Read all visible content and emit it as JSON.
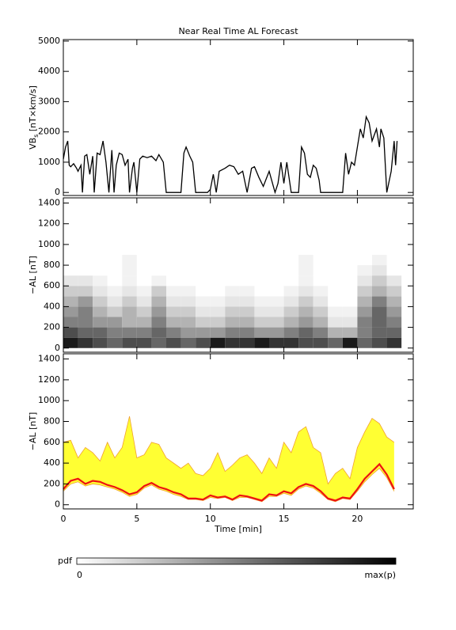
{
  "title": "Near Real Time AL Forecast",
  "chart_data": [
    {
      "type": "line",
      "ylabel": {
        "main": "VB",
        "sub": "s",
        "rest": " [nT×km/s]"
      },
      "xlim": [
        0,
        23.8
      ],
      "xticks": [
        0,
        5,
        10,
        15,
        20
      ],
      "xtick_labels": false,
      "ylim": [
        -100,
        5050
      ],
      "yticks": [
        0,
        1000,
        2000,
        3000,
        4000,
        5000
      ],
      "color": "#000000",
      "x": [
        0,
        0.15,
        0.3,
        0.4,
        0.5,
        0.7,
        0.9,
        1.0,
        1.2,
        1.3,
        1.45,
        1.6,
        1.8,
        2.0,
        2.1,
        2.3,
        2.5,
        2.7,
        2.9,
        3.1,
        3.3,
        3.45,
        3.6,
        3.8,
        4.0,
        4.2,
        4.4,
        4.5,
        4.7,
        4.8,
        5.0,
        5.2,
        5.4,
        5.7,
        6.0,
        6.3,
        6.5,
        6.8,
        7.0,
        8.0,
        8.2,
        8.35,
        8.6,
        8.8,
        9.0,
        9.8,
        10.0,
        10.2,
        10.4,
        10.6,
        11.0,
        11.3,
        11.6,
        11.9,
        12.2,
        12.5,
        12.8,
        13.0,
        13.3,
        13.6,
        14.0,
        14.4,
        14.6,
        14.8,
        15.0,
        15.2,
        15.5,
        16.0,
        16.2,
        16.4,
        16.6,
        16.8,
        17.0,
        17.2,
        17.4,
        17.5,
        19.0,
        19.2,
        19.4,
        19.6,
        19.8,
        20.0,
        20.2,
        20.4,
        20.6,
        20.8,
        21.0,
        21.3,
        21.5,
        21.6,
        21.8,
        22.0,
        22.3,
        22.5,
        22.6,
        22.7
      ],
      "values": [
        1100,
        1500,
        1700,
        900,
        850,
        950,
        800,
        700,
        900,
        0,
        1200,
        1250,
        600,
        1200,
        0,
        1300,
        1250,
        1700,
        1000,
        0,
        1400,
        0,
        900,
        1300,
        1250,
        900,
        1100,
        0,
        800,
        1000,
        0,
        1100,
        1200,
        1150,
        1200,
        1050,
        1250,
        1000,
        0,
        0,
        1300,
        1500,
        1200,
        1000,
        0,
        0,
        100,
        600,
        0,
        700,
        800,
        900,
        850,
        600,
        700,
        0,
        800,
        850,
        500,
        200,
        700,
        0,
        300,
        1000,
        300,
        1000,
        0,
        0,
        1500,
        1300,
        600,
        500,
        900,
        800,
        400,
        0,
        0,
        1300,
        600,
        1000,
        900,
        1500,
        2100,
        1800,
        2500,
        2300,
        1700,
        2100,
        1500,
        2100,
        1800,
        0,
        700,
        1700,
        900,
        1700
      ]
    },
    {
      "type": "heatmap",
      "ylabel": "−AL [nT]",
      "xlim": [
        0,
        23.8
      ],
      "xticks": [
        0,
        5,
        10,
        15,
        20
      ],
      "xtick_labels": false,
      "ylim": [
        -40,
        1450
      ],
      "yticks": [
        0,
        200,
        400,
        600,
        800,
        1000,
        1200,
        1400
      ],
      "x_bins": [
        0,
        1,
        2,
        3,
        4,
        5,
        6,
        7,
        8,
        9,
        10,
        11,
        12,
        13,
        14,
        15,
        16,
        17,
        18,
        19,
        20,
        21,
        22,
        23
      ],
      "y_bins": [
        0,
        100,
        200,
        300,
        400,
        500,
        600,
        700,
        800,
        900
      ],
      "colormap": [
        "#ffffff",
        "#000000"
      ],
      "colorbar_label": "pdf",
      "colorbar_ticks": [
        {
          "value": 0,
          "label": "0"
        },
        {
          "value": 1,
          "label": "max(p)"
        }
      ],
      "z": [
        [
          0.9,
          0.8,
          0.7,
          0.6,
          0.7,
          0.7,
          0.6,
          0.7,
          0.6,
          0.7,
          0.9,
          0.8,
          0.8,
          0.9,
          0.8,
          0.8,
          0.7,
          0.7,
          0.6,
          0.9,
          0.6,
          0.7,
          0.8
        ],
        [
          0.7,
          0.6,
          0.6,
          0.5,
          0.5,
          0.5,
          0.6,
          0.5,
          0.4,
          0.4,
          0.4,
          0.5,
          0.5,
          0.4,
          0.4,
          0.5,
          0.6,
          0.5,
          0.3,
          0.3,
          0.5,
          0.6,
          0.6
        ],
        [
          0.5,
          0.5,
          0.4,
          0.4,
          0.3,
          0.3,
          0.5,
          0.3,
          0.3,
          0.2,
          0.2,
          0.3,
          0.3,
          0.2,
          0.2,
          0.3,
          0.4,
          0.3,
          0.1,
          0.1,
          0.5,
          0.6,
          0.5
        ],
        [
          0.4,
          0.5,
          0.3,
          0.2,
          0.3,
          0.2,
          0.4,
          0.2,
          0.2,
          0.1,
          0.1,
          0.2,
          0.2,
          0.1,
          0.1,
          0.2,
          0.3,
          0.2,
          0.05,
          0.05,
          0.4,
          0.6,
          0.4
        ],
        [
          0.3,
          0.4,
          0.2,
          0.1,
          0.2,
          0.1,
          0.3,
          0.1,
          0.1,
          0.05,
          0.05,
          0.1,
          0.1,
          0.05,
          0.05,
          0.1,
          0.2,
          0.1,
          0,
          0,
          0.3,
          0.5,
          0.3
        ],
        [
          0.2,
          0.2,
          0.1,
          0.05,
          0.1,
          0.05,
          0.2,
          0.05,
          0.05,
          0,
          0,
          0.05,
          0.05,
          0,
          0,
          0.05,
          0.1,
          0.05,
          0,
          0,
          0.2,
          0.3,
          0.2
        ],
        [
          0.1,
          0.1,
          0.05,
          0,
          0.05,
          0,
          0.05,
          0,
          0,
          0,
          0,
          0,
          0,
          0,
          0,
          0,
          0.05,
          0,
          0,
          0,
          0.1,
          0.2,
          0.1
        ],
        [
          0,
          0,
          0,
          0,
          0.05,
          0,
          0,
          0,
          0,
          0,
          0,
          0,
          0,
          0,
          0,
          0,
          0.05,
          0,
          0,
          0,
          0.05,
          0.1,
          0
        ],
        [
          0,
          0,
          0,
          0,
          0.05,
          0,
          0,
          0,
          0,
          0,
          0,
          0,
          0,
          0,
          0,
          0,
          0.05,
          0,
          0,
          0,
          0,
          0.05,
          0
        ]
      ]
    },
    {
      "type": "band",
      "ylabel": "−AL [nT]",
      "xlabel": "Time [min]",
      "xlim": [
        0,
        23.8
      ],
      "xticks": [
        0,
        5,
        10,
        15,
        20
      ],
      "xtick_labels": true,
      "ylim": [
        -40,
        1450
      ],
      "yticks": [
        0,
        200,
        400,
        600,
        800,
        1000,
        1200,
        1400
      ],
      "fill": "#ffff33",
      "x": [
        0,
        0.5,
        1,
        1.5,
        2,
        2.5,
        3,
        3.5,
        4,
        4.5,
        5,
        5.5,
        6,
        6.5,
        7,
        7.5,
        8,
        8.5,
        9,
        9.5,
        10,
        10.5,
        11,
        11.5,
        12,
        12.5,
        13,
        13.5,
        14,
        14.5,
        15,
        15.5,
        16,
        16.5,
        17,
        17.5,
        18,
        18.5,
        19,
        19.5,
        20,
        20.5,
        21,
        21.5,
        22,
        22.5
      ],
      "series": [
        {
          "color": "#f0a030",
          "values": [
            600,
            620,
            450,
            550,
            500,
            420,
            600,
            450,
            550,
            850,
            450,
            480,
            600,
            580,
            450,
            400,
            350,
            400,
            300,
            280,
            350,
            500,
            320,
            380,
            450,
            480,
            400,
            300,
            450,
            350,
            600,
            500,
            700,
            750,
            550,
            500,
            200,
            300,
            350,
            250,
            550,
            700,
            830,
            780,
            650,
            600
          ]
        },
        {
          "color": "#f0a030",
          "values": [
            130,
            200,
            220,
            180,
            200,
            190,
            170,
            150,
            120,
            80,
            100,
            160,
            190,
            150,
            130,
            100,
            80,
            50,
            50,
            40,
            70,
            60,
            70,
            40,
            70,
            70,
            50,
            30,
            80,
            80,
            110,
            90,
            150,
            180,
            160,
            110,
            50,
            30,
            60,
            50,
            130,
            220,
            290,
            350,
            260,
            130
          ]
        },
        {
          "color": "#ee1111",
          "values": [
            150,
            230,
            250,
            200,
            230,
            220,
            190,
            170,
            140,
            100,
            120,
            180,
            210,
            170,
            150,
            120,
            100,
            60,
            60,
            50,
            90,
            70,
            80,
            50,
            90,
            80,
            60,
            40,
            100,
            90,
            130,
            110,
            170,
            200,
            180,
            130,
            60,
            40,
            70,
            60,
            150,
            250,
            320,
            390,
            290,
            150
          ]
        }
      ]
    }
  ]
}
